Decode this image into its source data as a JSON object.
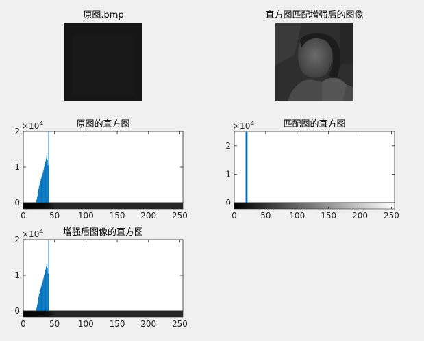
{
  "figure": {
    "images": [
      {
        "title": "原图.bmp",
        "style": "dark"
      },
      {
        "title": "直方图匹配增强后的图像",
        "style": "portrait"
      }
    ]
  },
  "chart_data": [
    {
      "type": "bar",
      "title": "原图的直方图",
      "xlim": [
        0,
        255
      ],
      "ylim": [
        0,
        20000
      ],
      "xticks": [
        "0",
        "50",
        "100",
        "150",
        "200",
        "250"
      ],
      "yticks": [
        "0",
        "1",
        "2"
      ],
      "y_exponent_base": "×10",
      "y_exponent": "4",
      "bar_color": "#0072BD",
      "colorbar": "gray",
      "bins_start": 20,
      "values": [
        300,
        900,
        1800,
        2900,
        3900,
        4800,
        5600,
        6200,
        6800,
        7400,
        8000,
        8600,
        9300,
        10100,
        10800,
        11600,
        12400,
        13300,
        12000,
        10500,
        24500
      ]
    },
    {
      "type": "bar",
      "title": "匹配图的直方图",
      "xlim": [
        0,
        255
      ],
      "ylim": [
        0,
        25000
      ],
      "xticks": [
        "0",
        "50",
        "100",
        "150",
        "200",
        "250"
      ],
      "yticks": [
        "0",
        "1",
        "2"
      ],
      "y_exponent_base": "×10",
      "y_exponent": "4",
      "bar_color": "#0072BD",
      "colorbar": "gray",
      "bins_start": 18,
      "values": [
        24800,
        24800,
        24800
      ]
    },
    {
      "type": "bar",
      "title": "增强后图像的直方图",
      "xlim": [
        0,
        255
      ],
      "ylim": [
        0,
        20000
      ],
      "xticks": [
        "0",
        "50",
        "100",
        "150",
        "200",
        "250"
      ],
      "yticks": [
        "0",
        "1",
        "2"
      ],
      "y_exponent_base": "×10",
      "y_exponent": "4",
      "bar_color": "#0072BD",
      "colorbar": "gray",
      "bins_start": 20,
      "values": [
        300,
        900,
        1800,
        2900,
        3900,
        4800,
        5600,
        6200,
        6800,
        7400,
        8000,
        8600,
        9300,
        10100,
        10800,
        11600,
        12400,
        13300,
        12000,
        10500,
        24500
      ]
    }
  ]
}
